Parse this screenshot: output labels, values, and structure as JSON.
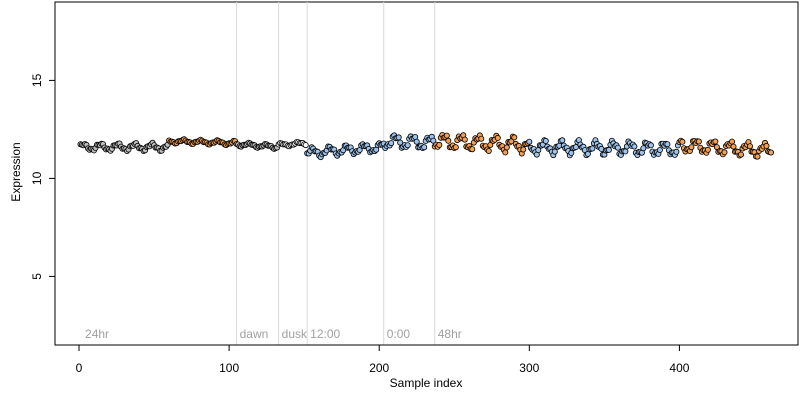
{
  "chart_data": {
    "type": "scatter",
    "xlabel": "Sample index",
    "ylabel": "Expression",
    "xlim": [
      -16,
      479
    ],
    "ylim": [
      1.5,
      19.0
    ],
    "x_ticks": [
      0,
      100,
      200,
      300,
      400
    ],
    "y_ticks": [
      5,
      10,
      15
    ],
    "grid": false,
    "colors": {
      "background": "#ffffff",
      "axis": "#000000",
      "point_stroke": "#000000",
      "default": "#ffffff",
      "gray": "#bebebe",
      "orange": "#f5a050",
      "blue": "#9ec4ee",
      "phase_line": "#d9d9d9",
      "phase_label": "#a0a0a0"
    },
    "phase_markers": [
      {
        "x": 2,
        "label": "24hr",
        "line": false
      },
      {
        "x": 105,
        "label": "dawn",
        "line": true
      },
      {
        "x": 133,
        "label": "dusk",
        "line": true
      },
      {
        "x": 152,
        "label": "12:00",
        "line": true
      },
      {
        "x": 203,
        "label": "0:00",
        "line": true
      },
      {
        "x": 237,
        "label": "48hr",
        "line": true
      }
    ],
    "point_segments": [
      {
        "x_start": 1,
        "x_end": 60,
        "y_start": 11.6,
        "y_end": 11.6,
        "amplitude": 0.22,
        "color": "gray"
      },
      {
        "x_start": 60,
        "x_end": 105,
        "y_start": 11.9,
        "y_end": 11.8,
        "amplitude": 0.12,
        "color": "orange"
      },
      {
        "x_start": 105,
        "x_end": 133,
        "y_start": 11.75,
        "y_end": 11.6,
        "amplitude": 0.12,
        "color": "gray"
      },
      {
        "x_start": 133,
        "x_end": 152,
        "y_start": 11.7,
        "y_end": 11.8,
        "amplitude": 0.1,
        "color": "default"
      },
      {
        "x_start": 152,
        "x_end": 203,
        "y_start": 11.3,
        "y_end": 11.6,
        "amplitude": 0.28,
        "color": "blue"
      },
      {
        "x_start": 203,
        "x_end": 237,
        "y_start": 11.9,
        "y_end": 11.8,
        "amplitude": 0.4,
        "color": "blue"
      },
      {
        "x_start": 237,
        "x_end": 300,
        "y_start": 11.9,
        "y_end": 11.7,
        "amplitude": 0.45,
        "color": "orange"
      },
      {
        "x_start": 300,
        "x_end": 400,
        "y_start": 11.6,
        "y_end": 11.5,
        "amplitude": 0.4,
        "color": "blue"
      },
      {
        "x_start": 400,
        "x_end": 462,
        "y_start": 11.7,
        "y_end": 11.4,
        "amplitude": 0.4,
        "color": "orange"
      }
    ]
  }
}
